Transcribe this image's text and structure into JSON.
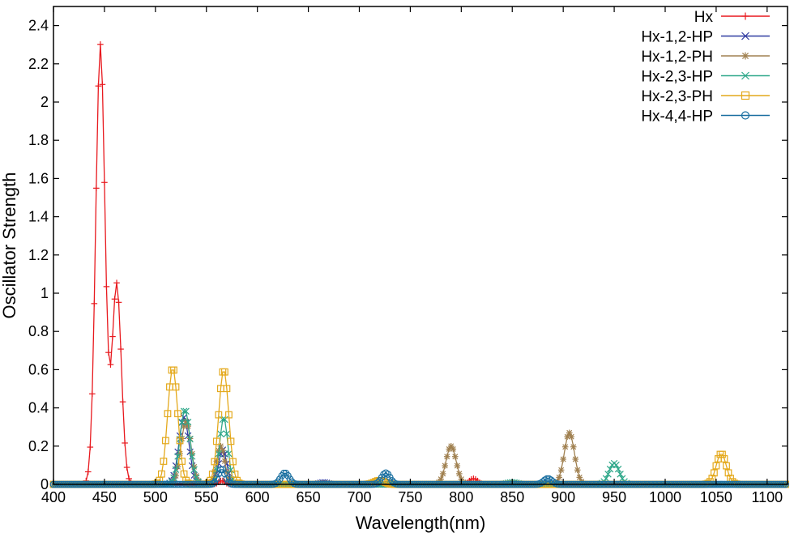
{
  "chart_data": {
    "type": "line",
    "title": "",
    "xlabel": "Wavelength(nm)",
    "ylabel": "Oscillator Strength",
    "xlim": [
      400,
      1120
    ],
    "ylim": [
      0,
      2.5
    ],
    "xticks": [
      400,
      450,
      500,
      550,
      600,
      650,
      700,
      750,
      800,
      850,
      900,
      950,
      1000,
      1050,
      1100
    ],
    "yticks": [
      0,
      0.2,
      0.4,
      0.6,
      0.8,
      1,
      1.2,
      1.4,
      1.6,
      1.8,
      2,
      2.2,
      2.4
    ],
    "ytick_labels": [
      "0",
      "0.2",
      "0.4",
      "0.6",
      "0.8",
      "1",
      "1.2",
      "1.4",
      "1.6",
      "1.8",
      "2",
      "2.2",
      "2.4"
    ],
    "grid": false,
    "legend_position": "top-right",
    "marker_step_nm": 2,
    "series": [
      {
        "name": "Hx",
        "color": "#e8191e",
        "marker": "plus",
        "peaks": [
          [
            446,
            2.3,
            4.5
          ],
          [
            462,
            1.05,
            4.5
          ],
          [
            565,
            0.02,
            3
          ],
          [
            812,
            0.03,
            4
          ]
        ]
      },
      {
        "name": "Hx-1,2-HP",
        "color": "#2f3aa0",
        "marker": "cross",
        "peaks": [
          [
            528,
            0.35,
            5
          ],
          [
            566,
            0.18,
            4
          ],
          [
            665,
            0.01,
            4
          ]
        ]
      },
      {
        "name": "Hx-1,2-PH",
        "color": "#a08050",
        "marker": "star",
        "peaks": [
          [
            530,
            0.33,
            5
          ],
          [
            564,
            0.2,
            4
          ],
          [
            790,
            0.2,
            5
          ],
          [
            906,
            0.27,
            5
          ]
        ]
      },
      {
        "name": "Hx-2,3-HP",
        "color": "#2fa88a",
        "marker": "cross",
        "peaks": [
          [
            529,
            0.39,
            5
          ],
          [
            567,
            0.35,
            4
          ],
          [
            950,
            0.11,
            5
          ],
          [
            850,
            0.01,
            5
          ]
        ]
      },
      {
        "name": "Hx-2,3-PH",
        "color": "#e4a91c",
        "marker": "square",
        "peaks": [
          [
            517,
            0.61,
            5
          ],
          [
            567,
            0.6,
            5
          ],
          [
            720,
            0.02,
            5
          ],
          [
            1055,
            0.16,
            5
          ]
        ]
      },
      {
        "name": "Hx-4,4-HP",
        "color": "#1a6fa0",
        "marker": "circle",
        "peaks": [
          [
            565,
            0.08,
            3.5
          ],
          [
            627,
            0.06,
            4
          ],
          [
            726,
            0.06,
            4
          ],
          [
            885,
            0.03,
            4
          ]
        ]
      }
    ]
  }
}
